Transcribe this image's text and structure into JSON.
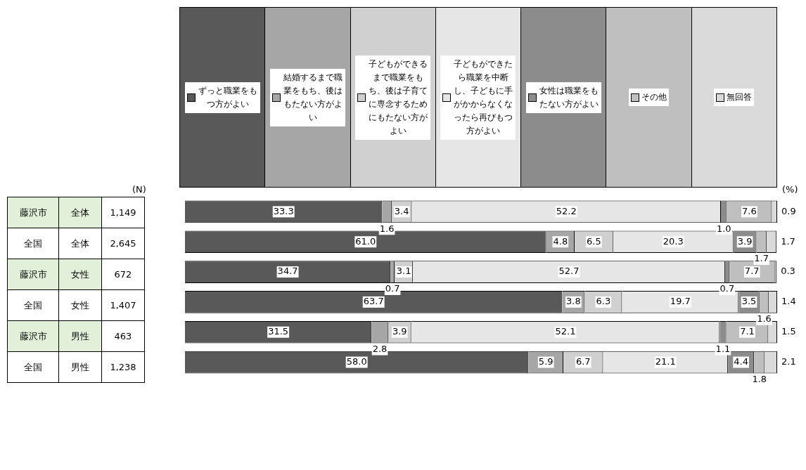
{
  "chart_data": {
    "type": "bar",
    "orientation": "horizontal",
    "stacked": true,
    "legend": "top",
    "grid": false,
    "tick_labels": false,
    "xlim": [
      0,
      100
    ],
    "categories": [
      "藤沢市 全体",
      "全国 全体",
      "藤沢市 女性",
      "全国 女性",
      "藤沢市 男性",
      "全国 男性"
    ],
    "series": [
      {
        "name": "ずっと職業をもつ方がよい",
        "color": "#595959",
        "values": [
          33.3,
          61.0,
          34.7,
          63.7,
          31.5,
          58.0
        ],
        "value_labels": [
          "33.3",
          "61.0",
          "34.7",
          "63.7",
          "31.5",
          "58.0"
        ]
      },
      {
        "name": "結婚するまで職業をもち、後はもたない方がよい",
        "color": "#a6a6a6",
        "values": [
          1.6,
          4.8,
          0.7,
          3.8,
          2.8,
          5.9
        ],
        "value_labels": [
          "1.6",
          "4.8",
          "0.7",
          "3.8",
          "2.8",
          "5.9"
        ]
      },
      {
        "name": "子どもができるまで職業をもち、後は子育てに専念するためにもたない方がよい",
        "color": "#d0d0d0",
        "values": [
          3.4,
          6.5,
          3.1,
          6.3,
          3.9,
          6.7
        ],
        "value_labels": [
          "3.4",
          "6.5",
          "3.1",
          "6.3",
          "3.9",
          "6.7"
        ]
      },
      {
        "name": "子どもができたら職業を中断し、子どもに手がかからなくなったら再びもつ方がよい",
        "color": "#e6e6e6",
        "values": [
          52.2,
          20.3,
          52.7,
          19.7,
          52.1,
          21.1
        ],
        "value_labels": [
          "52.2",
          "20.3",
          "52.7",
          "19.7",
          "52.1",
          "21.1"
        ]
      },
      {
        "name": "女性は職業をもたない方がよい",
        "color": "#8c8c8c",
        "values": [
          1.0,
          3.9,
          0.7,
          3.5,
          1.1,
          4.4
        ],
        "value_labels": [
          "1.0",
          "3.9",
          "0.7",
          "3.5",
          "1.1",
          "4.4"
        ]
      },
      {
        "name": "その他",
        "color": "#bfbfbf",
        "values": [
          7.6,
          1.7,
          7.7,
          1.6,
          7.1,
          1.8
        ],
        "value_labels": [
          "7.6",
          "1.7",
          "7.7",
          "1.6",
          "7.1",
          "1.8"
        ]
      },
      {
        "name": "無回答",
        "color": "#dadada",
        "values": [
          0.9,
          1.7,
          0.3,
          1.4,
          1.5,
          2.1
        ],
        "value_labels": [
          "0.9",
          "1.7",
          "0.3",
          "1.4",
          "1.5",
          "2.1"
        ]
      }
    ],
    "annotations": [
      "(N)",
      "(%)",
      "1,149",
      "2,645",
      "672",
      "1,407",
      "463",
      "1,238"
    ]
  }
}
